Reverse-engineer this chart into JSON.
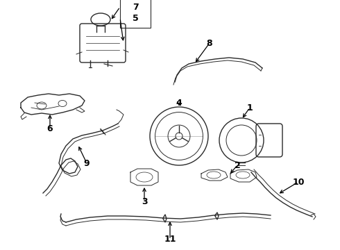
{
  "background_color": "#ffffff",
  "line_color": "#2a2a2a",
  "label_color": "#000000",
  "fig_width": 4.9,
  "fig_height": 3.6,
  "dpi": 100,
  "label_fontsize": 9,
  "label_fontweight": "bold"
}
